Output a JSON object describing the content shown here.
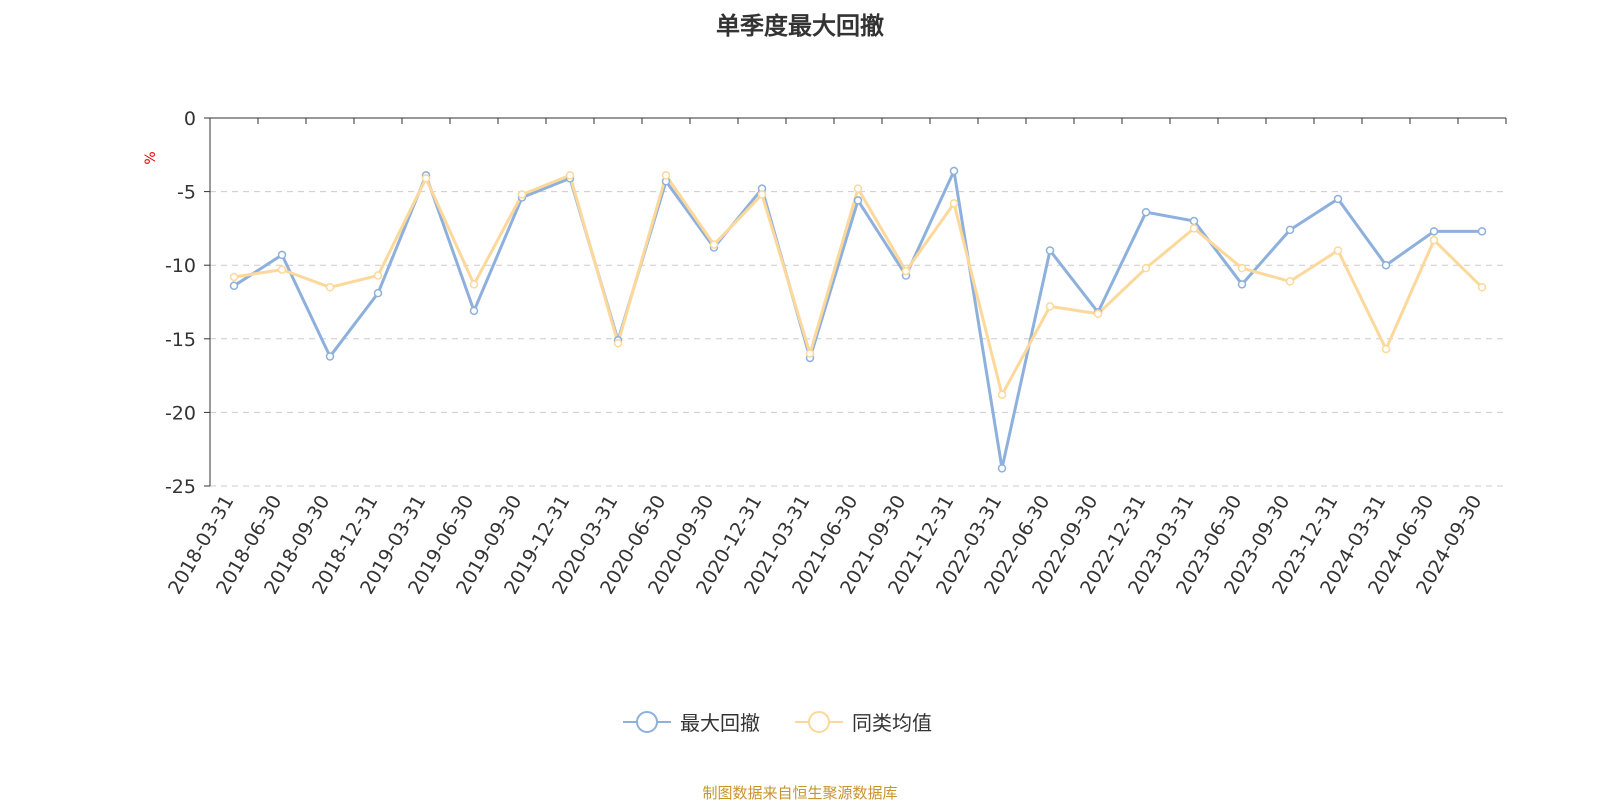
{
  "chart_data": {
    "type": "line",
    "title": "单季度最大回撤",
    "ylabel": "%",
    "ylim": [
      -25,
      0
    ],
    "yticks": [
      0,
      -5,
      -10,
      -15,
      -20,
      -25
    ],
    "grid": true,
    "legend_position": "bottom",
    "categories": [
      "2018-03-31",
      "2018-06-30",
      "2018-09-30",
      "2018-12-31",
      "2019-03-31",
      "2019-06-30",
      "2019-09-30",
      "2019-12-31",
      "2020-03-31",
      "2020-06-30",
      "2020-09-30",
      "2020-12-31",
      "2021-03-31",
      "2021-06-30",
      "2021-09-30",
      "2021-12-31",
      "2022-03-31",
      "2022-06-30",
      "2022-09-30",
      "2022-12-31",
      "2023-03-31",
      "2023-06-30",
      "2023-09-30",
      "2023-12-31",
      "2024-03-31",
      "2024-06-30",
      "2024-09-30"
    ],
    "series": [
      {
        "name": "最大回撤",
        "color": "#8eb0dc",
        "values": [
          -11.4,
          -9.3,
          -16.2,
          -11.9,
          -3.9,
          -13.1,
          -5.4,
          -4.1,
          -15.1,
          -4.3,
          -8.8,
          -4.8,
          -16.3,
          -5.6,
          -10.7,
          -3.6,
          -23.8,
          -9.0,
          -13.2,
          -6.4,
          -7.0,
          -11.3,
          -7.6,
          -5.5,
          -10.0,
          -7.7,
          -7.7
        ]
      },
      {
        "name": "同类均值",
        "color": "#fdd89b",
        "values": [
          -10.8,
          -10.3,
          -11.5,
          -10.7,
          -4.1,
          -11.3,
          -5.2,
          -3.9,
          -15.3,
          -3.9,
          -8.6,
          -5.2,
          -16.0,
          -4.8,
          -10.4,
          -5.8,
          -18.8,
          -12.8,
          -13.3,
          -10.2,
          -7.5,
          -10.2,
          -11.1,
          -9.0,
          -15.7,
          -8.3,
          -11.5
        ]
      }
    ]
  },
  "source": "制图数据来自恒生聚源数据库"
}
